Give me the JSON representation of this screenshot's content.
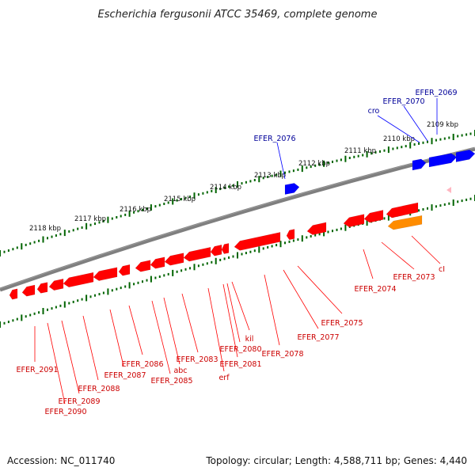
{
  "title": "Escherichia fergusonii ATCC 35469, complete genome",
  "footer": {
    "accession": "Accession: NC_011740",
    "info": "Topology: circular; Length: 4,588,711 bp; Genes: 4,440"
  },
  "colors": {
    "reverse": "#ff0000",
    "forward": "#0000ff",
    "highlight": "#ff8c00",
    "rna": "#ffb6c1",
    "backbone": "#7f7f7f",
    "ticks": "#006400",
    "reverse_label": "#cc0000",
    "forward_label": "#000099"
  },
  "axis": {
    "unit": "kbp",
    "labels": [
      "2109 kbp",
      "2110 kbp",
      "2111 kbp",
      "2112 kbp",
      "2113 kbp",
      "2114 kbp",
      "2115 kbp",
      "2116 kbp",
      "2117 kbp",
      "2118 kbp"
    ]
  },
  "genes": {
    "forward": [
      "EFER_2069",
      "EFER_2070",
      "cro",
      "EFER_2076"
    ],
    "reverse": [
      "cI",
      "EFER_2073",
      "EFER_2074",
      "EFER_2075",
      "EFER_2077",
      "EFER_2078",
      "kil",
      "EFER_2080",
      "EFER_2081",
      "erf",
      "EFER_2083",
      "abc",
      "EFER_2085",
      "EFER_2086",
      "EFER_2087",
      "EFER_2088",
      "EFER_2089",
      "EFER_2090",
      "EFER_2091"
    ]
  }
}
